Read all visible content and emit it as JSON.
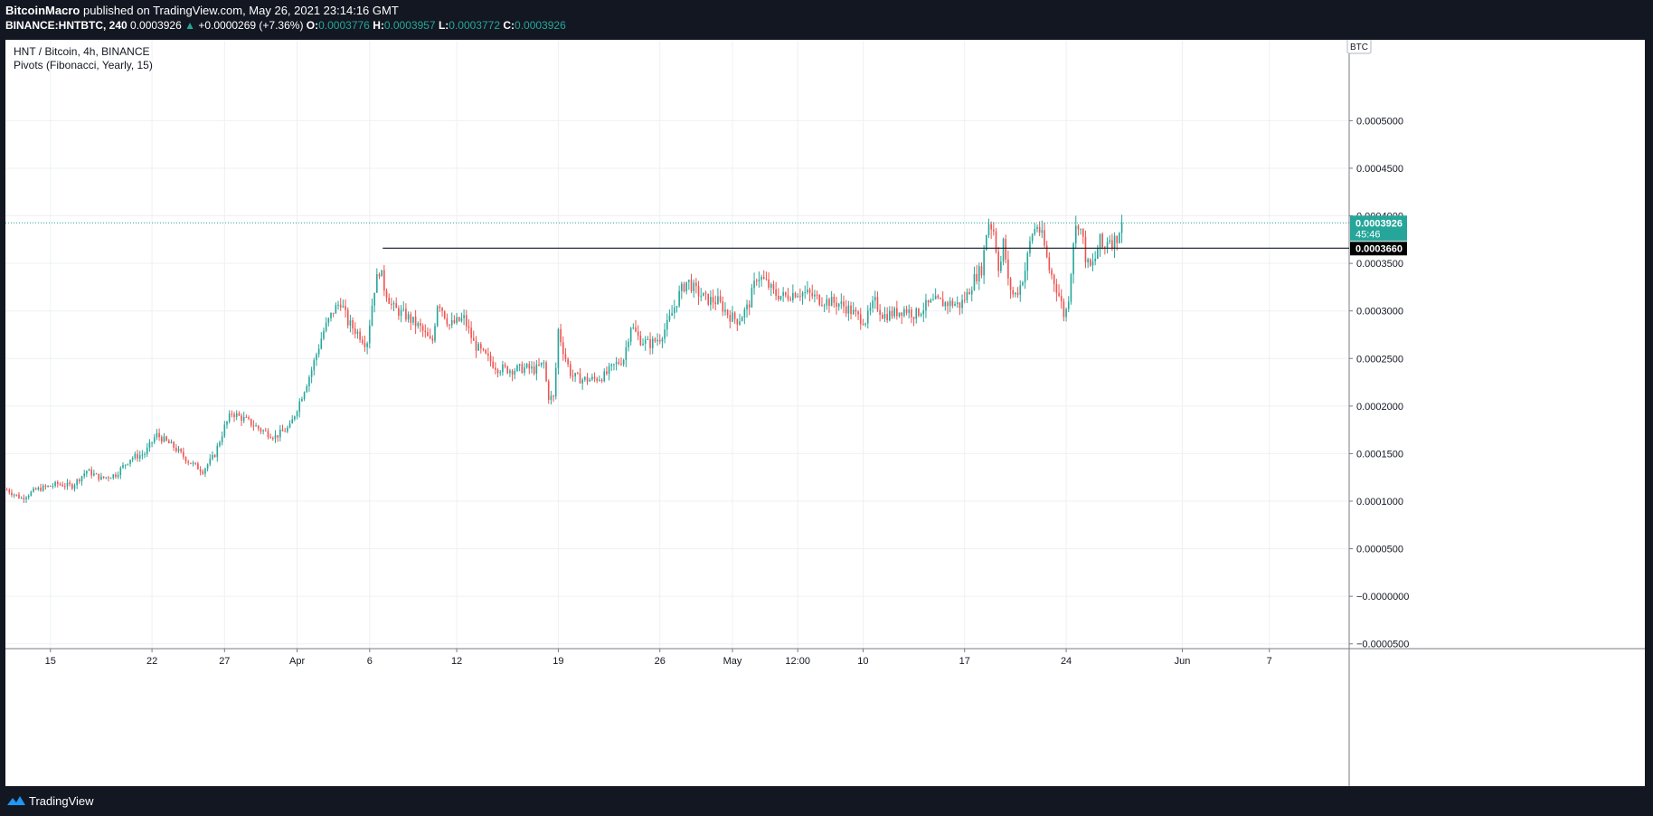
{
  "header": {
    "publisher": "BitcoinMacro",
    "published_text": "published on TradingView.com, May 26, 2021 23:14:16 GMT",
    "symbol": "BINANCE:HNTBTC, 240",
    "last": "0.0003926",
    "change_arrow": "▲",
    "change": "+0.0000269 (+7.36%)",
    "o_label": "O:",
    "o_value": "0.0003776",
    "h_label": "H:",
    "h_value": "0.0003957",
    "l_label": "L:",
    "l_value": "0.0003772",
    "c_label": "C:",
    "c_value": "0.0003926"
  },
  "legend": {
    "title": "HNT / Bitcoin, 4h, BINANCE",
    "indicator": "Pivots (Fibonacci, Yearly, 15)"
  },
  "currency_label": "BTC",
  "footer": {
    "brand": "TradingView"
  },
  "colors": {
    "up": "#26a69a",
    "down": "#ef5350",
    "grid": "#eef0f3",
    "line": "#131722"
  },
  "price_labels": {
    "last_price": "0.0003926",
    "countdown": "45:46",
    "horizontal_line": "0.0003660"
  },
  "chart_data": {
    "type": "candlestick",
    "ylim": [
      -5.5e-05,
      0.000585
    ],
    "yticks": [
      {
        "v": 0.0005,
        "label": "0.0005000"
      },
      {
        "v": 0.00045,
        "label": "0.0004500"
      },
      {
        "v": 0.0004,
        "label": "0.0004000"
      },
      {
        "v": 0.00035,
        "label": "0.0003500"
      },
      {
        "v": 0.0003,
        "label": "0.0003000"
      },
      {
        "v": 0.00025,
        "label": "0.0002500"
      },
      {
        "v": 0.0002,
        "label": "0.0002000"
      },
      {
        "v": 0.00015,
        "label": "0.0001500"
      },
      {
        "v": 0.0001,
        "label": "0.0001000"
      },
      {
        "v": 5e-05,
        "label": "0.0000500"
      },
      {
        "v": 0.0,
        "label": "−0.0000000"
      },
      {
        "v": -5e-05,
        "label": "−0.0000500"
      }
    ],
    "xticks": [
      {
        "day": 15,
        "label": "15"
      },
      {
        "day": 22,
        "label": "22"
      },
      {
        "day": 27,
        "label": "27"
      },
      {
        "day": 32,
        "label": "Apr"
      },
      {
        "day": 37,
        "label": "6"
      },
      {
        "day": 43,
        "label": "12"
      },
      {
        "day": 50,
        "label": "19"
      },
      {
        "day": 57,
        "label": "26"
      },
      {
        "day": 62,
        "label": "May"
      },
      {
        "day": 66.5,
        "label": "12:00"
      },
      {
        "day": 71,
        "label": "10"
      },
      {
        "day": 78,
        "label": "17"
      },
      {
        "day": 85,
        "label": "24"
      },
      {
        "day": 93,
        "label": "Jun"
      },
      {
        "day": 99,
        "label": "7"
      }
    ],
    "xlim_days": [
      11.9,
      104.5
    ],
    "horizontal_line": {
      "value": 0.000366,
      "start_day": 37.9
    },
    "last_price": 0.0003926,
    "close_path": [
      [
        12.0,
        0.000112
      ],
      [
        13.0,
        0.000103
      ],
      [
        14.0,
        0.000112
      ],
      [
        15.5,
        0.000118
      ],
      [
        16.5,
        0.000116
      ],
      [
        17.5,
        0.000132
      ],
      [
        18.5,
        0.000124
      ],
      [
        19.5,
        0.000128
      ],
      [
        20.5,
        0.000145
      ],
      [
        21.5,
        0.00015
      ],
      [
        22.3,
        0.00017
      ],
      [
        23.5,
        0.000157
      ],
      [
        24.5,
        0.000142
      ],
      [
        25.5,
        0.000132
      ],
      [
        26.3,
        0.000148
      ],
      [
        27.0,
        0.000178
      ],
      [
        27.5,
        0.000193
      ],
      [
        28.5,
        0.000185
      ],
      [
        29.5,
        0.000175
      ],
      [
        30.5,
        0.000168
      ],
      [
        31.5,
        0.000178
      ],
      [
        32.3,
        0.00021
      ],
      [
        33.0,
        0.000238
      ],
      [
        33.8,
        0.000278
      ],
      [
        34.5,
        0.0003
      ],
      [
        35.0,
        0.00031
      ],
      [
        35.5,
        0.000288
      ],
      [
        36.3,
        0.000275
      ],
      [
        36.8,
        0.000265
      ],
      [
        37.3,
        0.000322
      ],
      [
        37.7,
        0.000345
      ],
      [
        38.0,
        0.000325
      ],
      [
        38.6,
        0.000303
      ],
      [
        39.5,
        0.000295
      ],
      [
        40.5,
        0.000282
      ],
      [
        41.3,
        0.000265
      ],
      [
        41.7,
        0.000312
      ],
      [
        42.5,
        0.000285
      ],
      [
        43.5,
        0.000292
      ],
      [
        44.2,
        0.000265
      ],
      [
        44.8,
        0.000255
      ],
      [
        45.8,
        0.00024
      ],
      [
        46.8,
        0.000238
      ],
      [
        47.8,
        0.00024
      ],
      [
        48.4,
        0.000238
      ],
      [
        49.0,
        0.000245
      ],
      [
        49.3,
        0.00021
      ],
      [
        49.7,
        0.000208
      ],
      [
        50.0,
        0.00028
      ],
      [
        50.4,
        0.000255
      ],
      [
        50.9,
        0.000232
      ],
      [
        51.6,
        0.000228
      ],
      [
        52.4,
        0.000228
      ],
      [
        53.2,
        0.000232
      ],
      [
        53.8,
        0.000242
      ],
      [
        54.5,
        0.00025
      ],
      [
        55.0,
        0.000285
      ],
      [
        55.6,
        0.00027
      ],
      [
        56.3,
        0.000265
      ],
      [
        57.0,
        0.000272
      ],
      [
        57.5,
        0.000285
      ],
      [
        57.9,
        0.0003
      ],
      [
        58.4,
        0.00032
      ],
      [
        58.9,
        0.000332
      ],
      [
        59.4,
        0.000322
      ],
      [
        60.2,
        0.000312
      ],
      [
        61.0,
        0.00031
      ],
      [
        61.8,
        0.000295
      ],
      [
        62.4,
        0.00029
      ],
      [
        63.1,
        0.000305
      ],
      [
        63.7,
        0.000338
      ],
      [
        64.3,
        0.00033
      ],
      [
        64.9,
        0.000318
      ],
      [
        65.6,
        0.000315
      ],
      [
        66.4,
        0.00032
      ],
      [
        67.2,
        0.000318
      ],
      [
        68.0,
        0.000312
      ],
      [
        68.6,
        0.00031
      ],
      [
        69.3,
        0.000308
      ],
      [
        70.0,
        0.000302
      ],
      [
        70.7,
        0.000293
      ],
      [
        71.2,
        0.00029
      ],
      [
        71.8,
        0.00031
      ],
      [
        72.4,
        0.000295
      ],
      [
        73.2,
        0.000298
      ],
      [
        73.9,
        0.000302
      ],
      [
        74.6,
        0.000296
      ],
      [
        75.3,
        0.000305
      ],
      [
        76.0,
        0.00031
      ],
      [
        76.6,
        0.000308
      ],
      [
        77.2,
        0.000308
      ],
      [
        77.7,
        0.000306
      ],
      [
        78.2,
        0.000318
      ],
      [
        78.7,
        0.000335
      ],
      [
        79.2,
        0.000345
      ],
      [
        79.6,
        0.000395
      ],
      [
        80.0,
        0.000385
      ],
      [
        80.4,
        0.00034
      ],
      [
        80.7,
        0.000375
      ],
      [
        81.0,
        0.00033
      ],
      [
        81.4,
        0.000315
      ],
      [
        81.8,
        0.000325
      ],
      [
        82.2,
        0.000345
      ],
      [
        82.6,
        0.00038
      ],
      [
        83.0,
        0.00039
      ],
      [
        83.4,
        0.000375
      ],
      [
        83.8,
        0.000345
      ],
      [
        84.2,
        0.00033
      ],
      [
        84.6,
        0.000312
      ],
      [
        84.9,
        0.000292
      ],
      [
        85.2,
        0.000318
      ],
      [
        85.5,
        0.000375
      ],
      [
        85.8,
        0.000395
      ],
      [
        86.1,
        0.00038
      ],
      [
        86.4,
        0.00035
      ],
      [
        86.7,
        0.000345
      ],
      [
        87.0,
        0.000355
      ],
      [
        87.3,
        0.000375
      ],
      [
        87.6,
        0.000362
      ],
      [
        87.9,
        0.00038
      ],
      [
        88.2,
        0.000372
      ],
      [
        88.5,
        0.000378
      ],
      [
        88.8,
        0.000392
      ]
    ]
  }
}
